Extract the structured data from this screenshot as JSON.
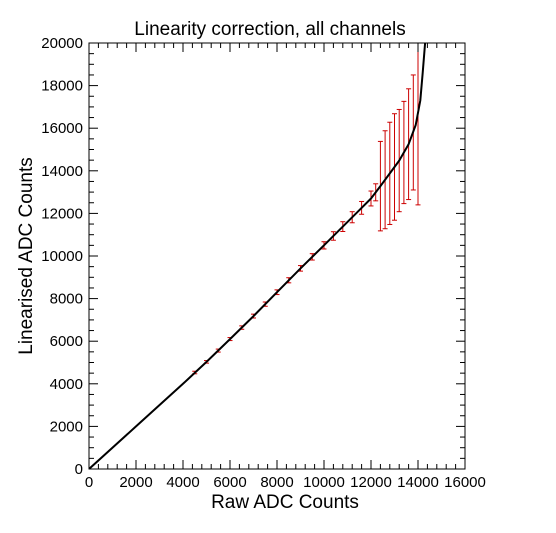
{
  "chart_data": {
    "type": "line",
    "title": "Linearity correction, all channels",
    "xlabel": "Raw ADC Counts",
    "ylabel": "Linearised ADC Counts",
    "xlim": [
      0,
      16000
    ],
    "ylim": [
      0,
      20000
    ],
    "x_ticks": [
      0,
      2000,
      4000,
      6000,
      8000,
      10000,
      12000,
      14000,
      16000
    ],
    "y_ticks": [
      0,
      2000,
      4000,
      6000,
      8000,
      10000,
      12000,
      14000,
      16000,
      18000,
      20000
    ],
    "grid": false,
    "legend": "none",
    "colors": {
      "curve": "#000000",
      "error_bars": "#cc0000",
      "axes": "#000000"
    },
    "curve": {
      "x": [
        0,
        2000,
        4000,
        5000,
        6000,
        7000,
        8000,
        9000,
        10000,
        10500,
        11000,
        11500,
        12000,
        12400,
        12800,
        13200,
        13600,
        13900,
        14100,
        14200,
        14300
      ],
      "y": [
        0,
        2000,
        4000,
        5030,
        6100,
        7180,
        8300,
        9420,
        10500,
        11050,
        11600,
        12150,
        12700,
        13280,
        13880,
        14480,
        15250,
        16150,
        17300,
        18600,
        20000
      ]
    },
    "error_bars": [
      {
        "x": 4500,
        "y": 4530,
        "err": 60
      },
      {
        "x": 5000,
        "y": 5030,
        "err": 60
      },
      {
        "x": 5500,
        "y": 5560,
        "err": 70
      },
      {
        "x": 6000,
        "y": 6100,
        "err": 70
      },
      {
        "x": 6500,
        "y": 6640,
        "err": 80
      },
      {
        "x": 7000,
        "y": 7180,
        "err": 90
      },
      {
        "x": 7500,
        "y": 7740,
        "err": 100
      },
      {
        "x": 8000,
        "y": 8300,
        "err": 110
      },
      {
        "x": 8500,
        "y": 8860,
        "err": 120
      },
      {
        "x": 9000,
        "y": 9420,
        "err": 130
      },
      {
        "x": 9500,
        "y": 9960,
        "err": 150
      },
      {
        "x": 10000,
        "y": 10500,
        "err": 170
      },
      {
        "x": 10400,
        "y": 10940,
        "err": 200
      },
      {
        "x": 10800,
        "y": 11380,
        "err": 230
      },
      {
        "x": 11200,
        "y": 11820,
        "err": 260
      },
      {
        "x": 11600,
        "y": 12260,
        "err": 300
      },
      {
        "x": 12000,
        "y": 12700,
        "err": 350
      },
      {
        "x": 12200,
        "y": 12990,
        "err": 400
      },
      {
        "x": 12400,
        "y": 13280,
        "err": 2100
      },
      {
        "x": 12600,
        "y": 13580,
        "err": 2300
      },
      {
        "x": 12800,
        "y": 13880,
        "err": 2400
      },
      {
        "x": 13000,
        "y": 14180,
        "err": 2500
      },
      {
        "x": 13200,
        "y": 14480,
        "err": 2400
      },
      {
        "x": 13400,
        "y": 14860,
        "err": 2400
      },
      {
        "x": 13600,
        "y": 15250,
        "err": 2600
      },
      {
        "x": 13800,
        "y": 15800,
        "err": 2700
      },
      {
        "x": 14000,
        "y": 16600,
        "err": 4200
      }
    ]
  }
}
